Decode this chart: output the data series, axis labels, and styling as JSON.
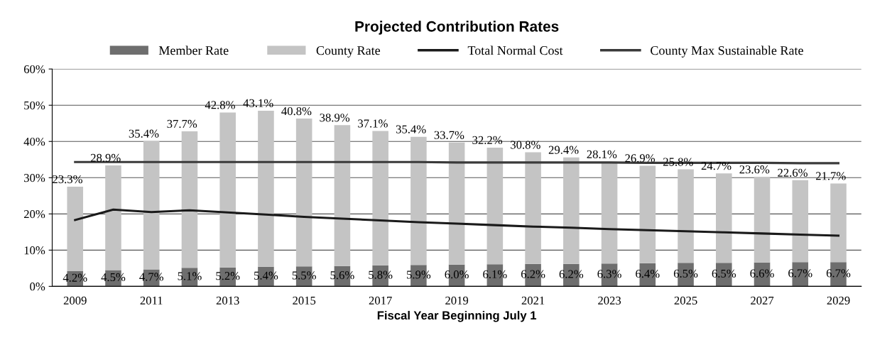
{
  "chart_data": {
    "type": "bar",
    "stacked": true,
    "title": "Projected Contribution Rates",
    "xlabel": "Fiscal Year Beginning July 1",
    "categories": [
      "2009",
      null,
      "2011",
      null,
      "2013",
      null,
      "2015",
      null,
      "2017",
      null,
      "2019",
      null,
      "2021",
      null,
      "2023",
      null,
      "2025",
      null,
      "2027",
      null,
      "2029"
    ],
    "series": [
      {
        "name": "Member Rate",
        "color": "#6e6e6e",
        "values": [
          4.2,
          4.5,
          4.7,
          5.1,
          5.2,
          5.4,
          5.5,
          5.6,
          5.8,
          5.9,
          6.0,
          6.1,
          6.2,
          6.2,
          6.3,
          6.4,
          6.5,
          6.5,
          6.6,
          6.7,
          6.7
        ],
        "value_labels": [
          "4.2%",
          "4.5%",
          "4.7%",
          "5.1%",
          "5.2%",
          "5.4%",
          "5.5%",
          "5.6%",
          "5.8%",
          "5.9%",
          "6.0%",
          "6.1%",
          "6.2%",
          "6.2%",
          "6.3%",
          "6.4%",
          "6.5%",
          "6.5%",
          "6.6%",
          "6.7%",
          "6.7%"
        ]
      },
      {
        "name": "County Rate",
        "color": "#c4c4c4",
        "values": [
          23.3,
          28.9,
          35.4,
          37.7,
          42.8,
          43.1,
          40.8,
          38.9,
          37.1,
          35.4,
          33.7,
          32.2,
          30.8,
          29.4,
          28.1,
          26.9,
          25.8,
          24.7,
          23.6,
          22.6,
          21.7
        ],
        "value_labels": [
          "23.3%",
          "28.9%",
          "35.4%",
          "37.7%",
          "42.8%",
          "43.1%",
          "40.8%",
          "38.9%",
          "37.1%",
          "35.4%",
          "33.7%",
          "32.2%",
          "30.8%",
          "29.4%",
          "28.1%",
          "26.9%",
          "25.8%",
          "24.7%",
          "23.6%",
          "22.6%",
          "21.7%"
        ]
      },
      {
        "name": "Total Normal Cost",
        "type": "line",
        "color": "#1a1a1a",
        "values": [
          18.3,
          21.2,
          20.5,
          21.0,
          20.4,
          19.8,
          19.2,
          18.7,
          18.2,
          17.7,
          17.3,
          16.9,
          16.5,
          16.2,
          15.8,
          15.5,
          15.2,
          14.9,
          14.6,
          14.3,
          14.0
        ]
      },
      {
        "name": "County Max Sustainable Rate",
        "type": "line",
        "color": "#3a3a3a",
        "values": [
          34.3,
          34.3,
          34.3,
          34.3,
          34.3,
          34.3,
          34.3,
          34.3,
          34.3,
          34.3,
          34.2,
          34.2,
          34.2,
          34.2,
          34.2,
          34.1,
          34.1,
          34.1,
          34.1,
          34.0,
          34.0
        ]
      }
    ],
    "ylim": [
      0,
      60
    ],
    "yticks": [
      {
        "value": 0,
        "label": "0%"
      },
      {
        "value": 10,
        "label": "10%"
      },
      {
        "value": 20,
        "label": "20%"
      },
      {
        "value": 30,
        "label": "30%"
      },
      {
        "value": 40,
        "label": "40%"
      },
      {
        "value": 50,
        "label": "50%"
      },
      {
        "value": 60,
        "label": "60%"
      }
    ],
    "grid": "y",
    "legend": "top"
  }
}
